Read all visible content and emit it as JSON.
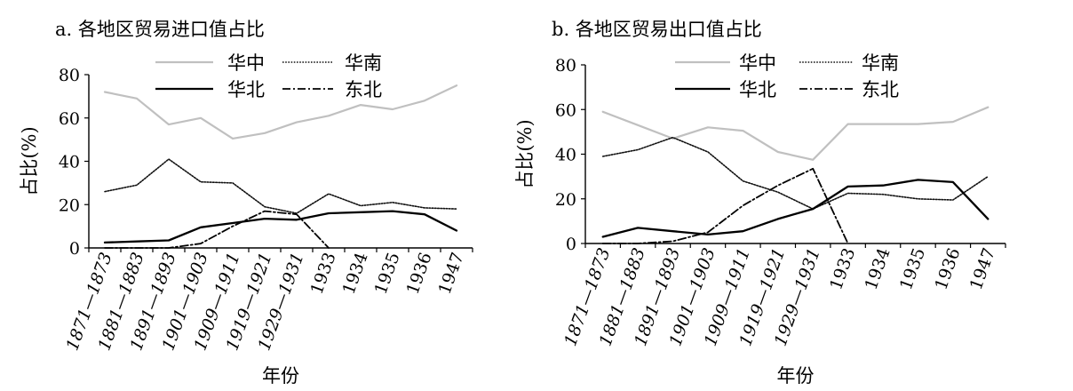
{
  "chart_data": [
    {
      "type": "line",
      "title": "a. 各地区贸易进口值占比",
      "xlabel": "年份",
      "ylabel": "占比(%)",
      "ylim": [
        0,
        80
      ],
      "yticks": [
        "0",
        "20",
        "40",
        "60",
        "80"
      ],
      "categories": [
        "1871—1873",
        "1881—1883",
        "1891—1893",
        "1901—1903",
        "1909—1911",
        "1919—1921",
        "1929—1931",
        "1933",
        "1934",
        "1935",
        "1936",
        "1947"
      ],
      "legend_position": "top",
      "series": [
        {
          "name": "华中",
          "style": "solid-light",
          "color": "#c0c0c0",
          "values": [
            72,
            69,
            57,
            60,
            50.5,
            53,
            58,
            61,
            66,
            64,
            68,
            75
          ]
        },
        {
          "name": "华南",
          "style": "dotted",
          "color": "#000000",
          "values": [
            26,
            29,
            41,
            30.5,
            30,
            19,
            16,
            25,
            19.5,
            21,
            18.5,
            18
          ]
        },
        {
          "name": "华北",
          "style": "solid-dark",
          "color": "#000000",
          "values": [
            2.5,
            3,
            3.5,
            9.5,
            11.5,
            13.5,
            13,
            16,
            16.5,
            17,
            15.5,
            8
          ]
        },
        {
          "name": "东北",
          "style": "dashdot",
          "color": "#000000",
          "values": [
            0,
            0,
            0,
            2,
            10,
            17,
            15.5,
            0,
            null,
            null,
            null,
            null
          ]
        }
      ]
    },
    {
      "type": "line",
      "title": "b. 各地区贸易出口值占比",
      "xlabel": "年份",
      "ylabel": "占比(%)",
      "ylim": [
        0,
        80
      ],
      "yticks": [
        "0",
        "20",
        "40",
        "60",
        "80"
      ],
      "categories": [
        "1871—1873",
        "1881—1883",
        "1891—1893",
        "1901—1903",
        "1909—1911",
        "1919—1921",
        "1929—1931",
        "1933",
        "1934",
        "1935",
        "1936",
        "1947"
      ],
      "legend_position": "top",
      "series": [
        {
          "name": "华中",
          "style": "solid-light",
          "color": "#c0c0c0",
          "values": [
            59,
            53,
            47,
            52,
            50.5,
            41,
            37.5,
            53.5,
            53.5,
            53.5,
            54.5,
            61
          ]
        },
        {
          "name": "华南",
          "style": "dotted",
          "color": "#000000",
          "values": [
            39,
            42,
            47.5,
            41,
            28,
            23,
            15.5,
            22.5,
            22,
            20,
            19.5,
            30
          ]
        },
        {
          "name": "华北",
          "style": "solid-dark",
          "color": "#000000",
          "values": [
            3,
            7,
            5.5,
            4,
            5.5,
            11,
            15.5,
            25.5,
            26,
            28.5,
            27.5,
            11
          ]
        },
        {
          "name": "东北",
          "style": "dashdot",
          "color": "#000000",
          "values": [
            0,
            0,
            1,
            5,
            17,
            26,
            33.5,
            0,
            null,
            null,
            null,
            null
          ]
        }
      ]
    }
  ]
}
